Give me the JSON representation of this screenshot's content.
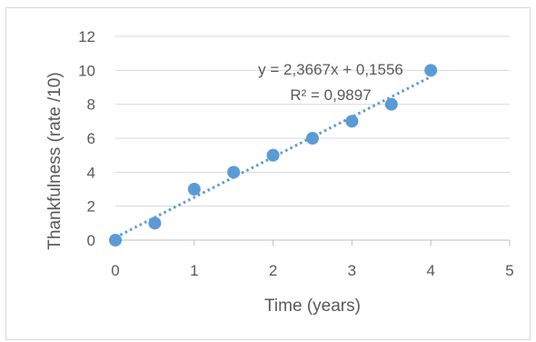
{
  "chart_data": {
    "type": "scatter",
    "xlabel": "Time (years)",
    "ylabel": "Thankfulness (rate /10)",
    "xlim": [
      0,
      5
    ],
    "ylim": [
      0,
      12
    ],
    "x_ticks": [
      "0",
      "1",
      "2",
      "3",
      "4",
      "5"
    ],
    "y_ticks": [
      "0",
      "2",
      "4",
      "6",
      "8",
      "10",
      "12"
    ],
    "grid": "horizontal",
    "legend": "none",
    "series": [
      {
        "x": [
          0,
          0.5,
          1,
          1.5,
          2,
          2.5,
          3,
          3.5,
          4
        ],
        "y": [
          0,
          1,
          3,
          4,
          5,
          6,
          7,
          8,
          10
        ],
        "color": "#5b9bd5"
      }
    ],
    "trendline": {
      "type": "linear",
      "slope": 2.3667,
      "intercept": 0.1556,
      "equation": "y = 2,3667x + 0,1556",
      "r_squared": "R² = 0,9897",
      "style": "dotted",
      "color": "#5b9bd5"
    }
  }
}
